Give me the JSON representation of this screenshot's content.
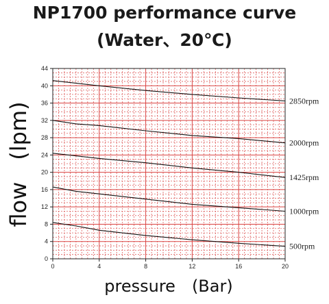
{
  "chart_data": {
    "type": "line",
    "title": "NP1700 performance curve",
    "subtitle": "(Water、20℃)",
    "xlabel": "pressure　(Bar)",
    "ylabel": "flow　(lpm)",
    "xlim": [
      0,
      20
    ],
    "ylim": [
      0,
      44
    ],
    "x_ticks": [
      0,
      4,
      8,
      12,
      16,
      20
    ],
    "y_ticks": [
      0,
      4,
      8,
      12,
      16,
      20,
      24,
      28,
      32,
      36,
      40,
      44
    ],
    "grid": true,
    "grid_color": "#d9403f",
    "line_color": "#111111",
    "series": [
      {
        "name": "2850rpm",
        "x": [
          0,
          4,
          8,
          12,
          16,
          20
        ],
        "values": [
          41.2,
          40.0,
          38.9,
          38.0,
          37.2,
          36.5
        ]
      },
      {
        "name": "2000rpm",
        "x": [
          0,
          2,
          4,
          5,
          8,
          12,
          16,
          20
        ],
        "values": [
          32.0,
          31.2,
          30.8,
          30.5,
          29.6,
          28.5,
          27.8,
          26.8
        ]
      },
      {
        "name": "1425rpm",
        "x": [
          0,
          4,
          8,
          12,
          16,
          20
        ],
        "values": [
          24.4,
          23.2,
          22.2,
          21.0,
          20.0,
          18.8
        ]
      },
      {
        "name": "1000rpm",
        "x": [
          0,
          2,
          4,
          8,
          12,
          16,
          20
        ],
        "values": [
          16.6,
          15.6,
          15.0,
          13.8,
          12.6,
          11.8,
          11.0
        ]
      },
      {
        "name": "500rpm",
        "x": [
          0,
          2,
          4,
          8,
          12,
          16,
          20
        ],
        "values": [
          8.4,
          7.6,
          6.6,
          5.4,
          4.4,
          3.6,
          2.9
        ]
      }
    ]
  }
}
